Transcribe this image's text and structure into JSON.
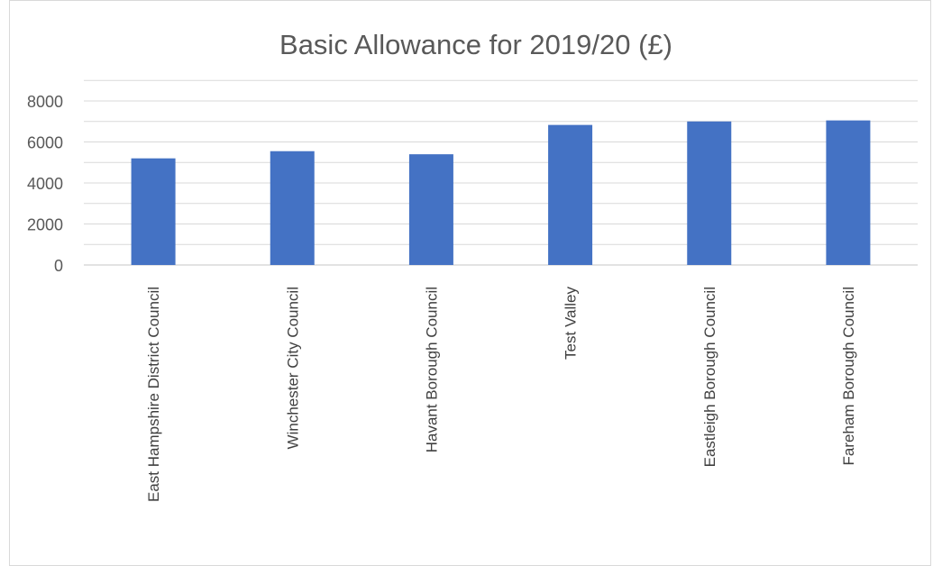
{
  "chart_data": {
    "type": "bar",
    "title": "Basic Allowance for 2019/20 (£)",
    "xlabel": "",
    "ylabel": "",
    "categories": [
      "East Hampshire District Council",
      "Winchester City Council",
      "Havant Borough Council",
      "Test Valley",
      "Eastleigh Borough Council",
      "Fareham Borough Council"
    ],
    "values": [
      5200,
      5550,
      5400,
      6830,
      7000,
      7050
    ],
    "ylim": [
      0,
      8000
    ],
    "yticks": [
      0,
      2000,
      4000,
      6000,
      8000
    ],
    "grid": true,
    "legend": "none",
    "bar_color": "#4472C4",
    "grid_color": "#d9d9d9"
  }
}
